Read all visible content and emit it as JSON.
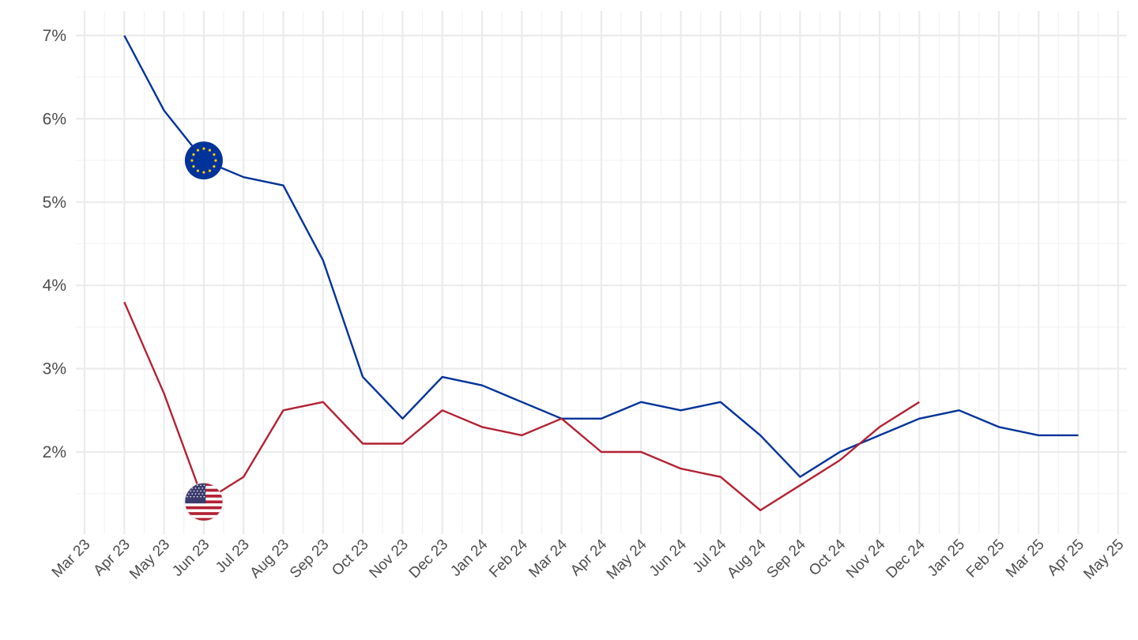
{
  "chart_data": {
    "type": "line",
    "x_ticks": [
      "Mar 23",
      "Apr 23",
      "May 23",
      "Jun 23",
      "Jul 23",
      "Aug 23",
      "Sep 23",
      "Oct 23",
      "Nov 23",
      "Dec 23",
      "Jan 24",
      "Feb 24",
      "Mar 24",
      "Apr 24",
      "May 24",
      "Jun 24",
      "Jul 24",
      "Aug 24",
      "Sep 24",
      "Oct 24",
      "Nov 24",
      "Dec 24",
      "Jan 25",
      "Feb 25",
      "Mar 25",
      "Apr 25",
      "May 25"
    ],
    "y_ticks": [
      "2%",
      "3%",
      "4%",
      "5%",
      "6%",
      "7%"
    ],
    "y_tick_values": [
      2,
      3,
      4,
      5,
      6,
      7
    ],
    "ylim": [
      1.0,
      7.25
    ],
    "grid": true,
    "series": [
      {
        "color": "#003399",
        "marker_icon": "eu-flag-icon",
        "marker_index": 2,
        "points": [
          {
            "x": "Apr 23",
            "y": 7.0
          },
          {
            "x": "May 23",
            "y": 6.1
          },
          {
            "x": "Jun 23",
            "y": 5.5
          },
          {
            "x": "Jul 23",
            "y": 5.3
          },
          {
            "x": "Aug 23",
            "y": 5.2
          },
          {
            "x": "Sep 23",
            "y": 4.3
          },
          {
            "x": "Oct 23",
            "y": 2.9
          },
          {
            "x": "Nov 23",
            "y": 2.4
          },
          {
            "x": "Dec 23",
            "y": 2.9
          },
          {
            "x": "Jan 24",
            "y": 2.8
          },
          {
            "x": "Feb 24",
            "y": 2.6
          },
          {
            "x": "Mar 24",
            "y": 2.4
          },
          {
            "x": "Apr 24",
            "y": 2.4
          },
          {
            "x": "May 24",
            "y": 2.6
          },
          {
            "x": "Jun 24",
            "y": 2.5
          },
          {
            "x": "Jul 24",
            "y": 2.6
          },
          {
            "x": "Aug 24",
            "y": 2.2
          },
          {
            "x": "Sep 24",
            "y": 1.7
          },
          {
            "x": "Oct 24",
            "y": 2.0
          },
          {
            "x": "Nov 24",
            "y": 2.2
          },
          {
            "x": "Dec 24",
            "y": 2.4
          },
          {
            "x": "Jan 25",
            "y": 2.5
          },
          {
            "x": "Feb 25",
            "y": 2.3
          },
          {
            "x": "Mar 25",
            "y": 2.2
          },
          {
            "x": "Apr 25",
            "y": 2.2
          }
        ]
      },
      {
        "color": "#B22234",
        "marker_icon": "us-flag-icon",
        "marker_index": 2,
        "points": [
          {
            "x": "Apr 23",
            "y": 3.8
          },
          {
            "x": "May 23",
            "y": 2.7
          },
          {
            "x": "Jun 23",
            "y": 1.4
          },
          {
            "x": "Jul 23",
            "y": 1.7
          },
          {
            "x": "Aug 23",
            "y": 2.5
          },
          {
            "x": "Sep 23",
            "y": 2.6
          },
          {
            "x": "Oct 23",
            "y": 2.1
          },
          {
            "x": "Nov 23",
            "y": 2.1
          },
          {
            "x": "Dec 23",
            "y": 2.5
          },
          {
            "x": "Jan 24",
            "y": 2.3
          },
          {
            "x": "Feb 24",
            "y": 2.2
          },
          {
            "x": "Mar 24",
            "y": 2.4
          },
          {
            "x": "Apr 24",
            "y": 2.0
          },
          {
            "x": "May 24",
            "y": 2.0
          },
          {
            "x": "Jun 24",
            "y": 1.8
          },
          {
            "x": "Jul 24",
            "y": 1.7
          },
          {
            "x": "Aug 24",
            "y": 1.3
          },
          {
            "x": "Sep 24",
            "y": 1.6
          },
          {
            "x": "Oct 24",
            "y": 1.9
          },
          {
            "x": "Nov 24",
            "y": 2.3
          },
          {
            "x": "Dec 24",
            "y": 2.6
          }
        ]
      }
    ]
  }
}
